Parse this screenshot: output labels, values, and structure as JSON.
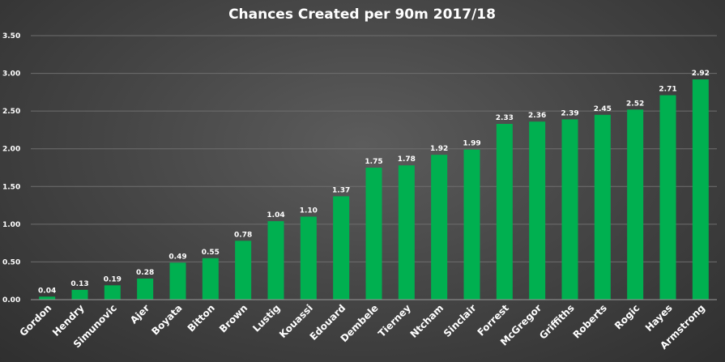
{
  "chart_data": {
    "type": "bar",
    "title": "Chances Created per 90m 2017/18",
    "xlabel": "",
    "ylabel": "",
    "ylim": [
      0,
      3.5
    ],
    "yticks": [
      "0.00",
      "0.50",
      "1.00",
      "1.50",
      "2.00",
      "2.50",
      "3.00",
      "3.50"
    ],
    "grid": true,
    "bar_color": "#00b050",
    "categories": [
      "Gordon",
      "Hendry",
      "Simunovic",
      "Ajer",
      "Boyata",
      "Bitton",
      "Brown",
      "Lustig",
      "Kouassi",
      "Edouard",
      "Dembele",
      "Tierney",
      "Ntcham",
      "Sinclair",
      "Forrest",
      "McGregor",
      "Griffiths",
      "Roberts",
      "Rogic",
      "Hayes",
      "Armstrong"
    ],
    "values": [
      0.04,
      0.13,
      0.19,
      0.28,
      0.49,
      0.55,
      0.78,
      1.04,
      1.1,
      1.37,
      1.75,
      1.78,
      1.92,
      1.99,
      2.33,
      2.36,
      2.39,
      2.45,
      2.52,
      2.71,
      2.92
    ],
    "data_labels": [
      "0.04",
      "0.13",
      "0.19",
      "0.28",
      "0.49",
      "0.55",
      "0.78",
      "1.04",
      "1.10",
      "1.37",
      "1.75",
      "1.78",
      "1.92",
      "1.99",
      "2.33",
      "2.36",
      "2.39",
      "2.45",
      "2.52",
      "2.71",
      "2.92"
    ]
  }
}
